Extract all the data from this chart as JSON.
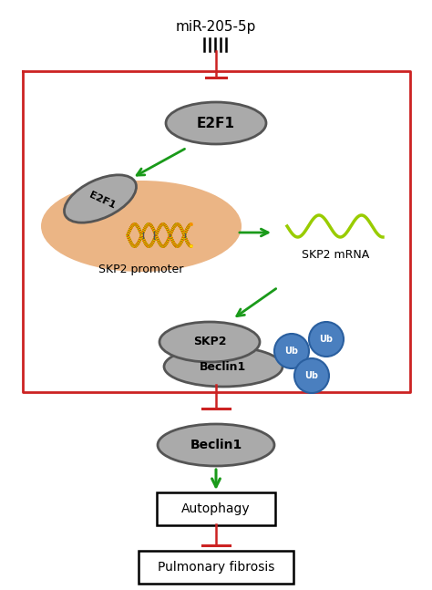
{
  "fig_width": 4.74,
  "fig_height": 6.47,
  "dpi": 100,
  "bg_color": "#ffffff",
  "green": "#1a9a1a",
  "red": "#cc2222",
  "gray_fill": "#aaaaaa",
  "gray_dark": "#555555",
  "blue_ub": "#4a7fbf",
  "blue_ub_edge": "#2a5f9f",
  "orange_promoter": "#e8a870",
  "mir_label": "miR-205-5p",
  "skp2_promoter_label": "SKP2 promoter",
  "skp2_mrna_label": "SKP2 mRNA",
  "e2f1_label": "E2F1",
  "skp2_label": "SKP2",
  "beclin1_label": "Beclin1",
  "autophagy_label": "Autophagy",
  "pf_label": "Pulmonary fibrosis"
}
